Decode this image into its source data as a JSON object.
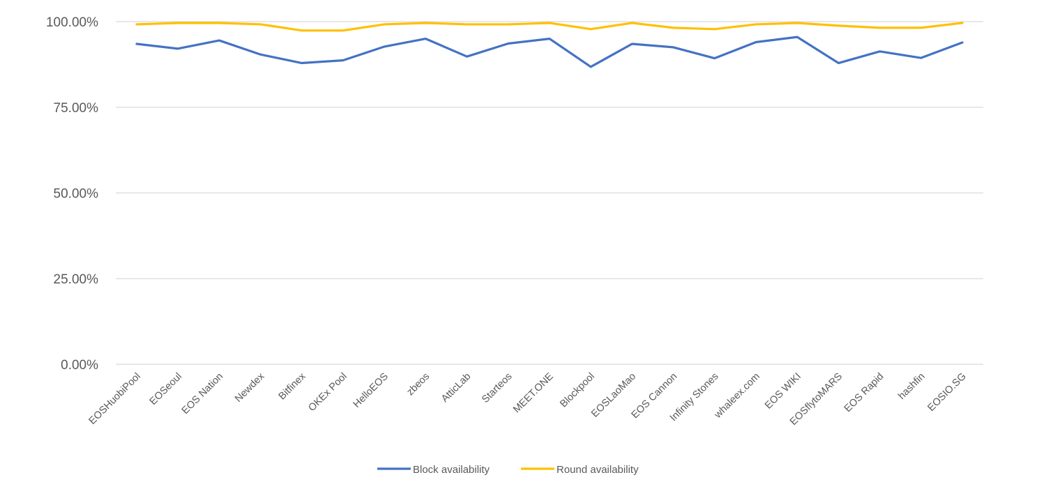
{
  "chart_data": {
    "type": "line",
    "title": "",
    "xlabel": "",
    "ylabel": "",
    "ylim": [
      0,
      100
    ],
    "yticks": [
      "0.00%",
      "25.00%",
      "50.00%",
      "75.00%",
      "100.00%"
    ],
    "ytick_values": [
      0,
      25,
      50,
      75,
      100
    ],
    "grid": true,
    "legend": "bottom",
    "categories": [
      "EOSHuobiPool",
      "EOSeoul",
      "EOS Nation",
      "Newdex",
      "Bitfinex",
      "OKEx Pool",
      "HelloEOS",
      "zbeos",
      "AtticLab",
      "Starteos",
      "MEET.ONE",
      "Blockpool",
      "EOSLaoMao",
      "EOS Cannon",
      "Infinity Stones",
      "whaleex.com",
      "EOS WIKI",
      "EOSflytoMARS",
      "EOS Rapid",
      "hashfin",
      "EOSIO.SG"
    ],
    "series": [
      {
        "name": "Block availability",
        "color": "#4472C4",
        "values": [
          93.5,
          92.1,
          94.5,
          90.4,
          87.9,
          88.7,
          92.7,
          95.0,
          89.8,
          93.6,
          95.0,
          86.8,
          93.5,
          92.5,
          89.3,
          94.0,
          95.5,
          87.9,
          91.3,
          89.4,
          93.9
        ]
      },
      {
        "name": "Round availability",
        "color": "#FFC000",
        "values": [
          99.2,
          99.6,
          99.6,
          99.2,
          97.4,
          97.4,
          99.2,
          99.6,
          99.2,
          99.2,
          99.6,
          97.8,
          99.6,
          98.2,
          97.8,
          99.2,
          99.6,
          98.8,
          98.2,
          98.2,
          99.6
        ]
      }
    ]
  }
}
